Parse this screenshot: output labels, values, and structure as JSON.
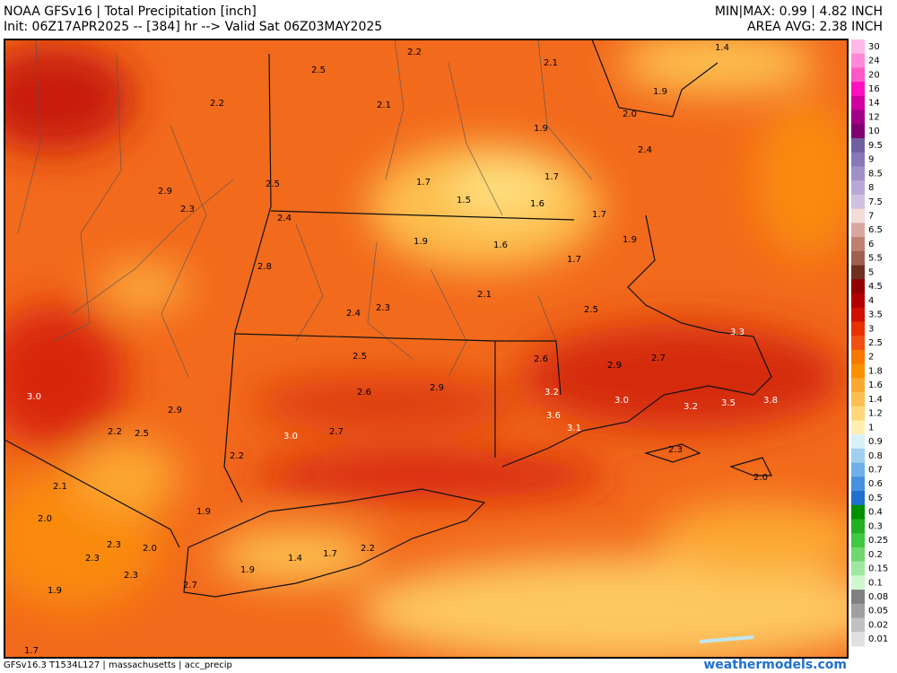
{
  "header": {
    "title": "NOAA GFSv16 | Total Precipitation [inch]",
    "subtitle": "Init: 06Z17APR2025 -- [384] hr --> Valid Sat 06Z03MAY2025",
    "minmax": "MIN|MAX: 0.99 | 4.82 INCH",
    "area_avg": "AREA AVG: 2.38 INCH"
  },
  "map": {
    "labels": [
      {
        "text": "2.5",
        "color": "#000000"
      },
      {
        "text": "2.2",
        "color": "#000000"
      },
      {
        "text": "2.1",
        "color": "#000000"
      },
      {
        "text": "1.4",
        "color": "#000000"
      },
      {
        "text": "2.2",
        "color": "#000000"
      },
      {
        "text": "2.1",
        "color": "#000000"
      },
      {
        "text": "1.9",
        "color": "#000000"
      },
      {
        "text": "2.0",
        "color": "#000000"
      },
      {
        "text": "1.9",
        "color": "#000000"
      },
      {
        "text": "2.4",
        "color": "#000000"
      },
      {
        "text": "2.9",
        "color": "#000000"
      },
      {
        "text": "2.3",
        "color": "#000000"
      },
      {
        "text": "2.5",
        "color": "#000000"
      },
      {
        "text": "1.7",
        "color": "#000000"
      },
      {
        "text": "1.7",
        "color": "#000000"
      },
      {
        "text": "1.5",
        "color": "#000000"
      },
      {
        "text": "1.6",
        "color": "#000000"
      },
      {
        "text": "1.7",
        "color": "#000000"
      },
      {
        "text": "2.4",
        "color": "#000000"
      },
      {
        "text": "1.9",
        "color": "#000000"
      },
      {
        "text": "1.6",
        "color": "#000000"
      },
      {
        "text": "1.9",
        "color": "#000000"
      },
      {
        "text": "1.7",
        "color": "#000000"
      },
      {
        "text": "2.8",
        "color": "#000000"
      },
      {
        "text": "2.1",
        "color": "#000000"
      },
      {
        "text": "2.5",
        "color": "#000000"
      },
      {
        "text": "2.4",
        "color": "#000000"
      },
      {
        "text": "2.3",
        "color": "#000000"
      },
      {
        "text": "3.3",
        "color": "#ffffff"
      },
      {
        "text": "2.5",
        "color": "#000000"
      },
      {
        "text": "2.6",
        "color": "#000000"
      },
      {
        "text": "2.9",
        "color": "#000000"
      },
      {
        "text": "2.7",
        "color": "#000000"
      },
      {
        "text": "2.6",
        "color": "#000000"
      },
      {
        "text": "2.9",
        "color": "#000000"
      },
      {
        "text": "3.2",
        "color": "#ffffff"
      },
      {
        "text": "3.0",
        "color": "#ffffff"
      },
      {
        "text": "3.0",
        "color": "#ffffff"
      },
      {
        "text": "3.6",
        "color": "#ffffff"
      },
      {
        "text": "3.2",
        "color": "#ffffff"
      },
      {
        "text": "3.5",
        "color": "#ffffff"
      },
      {
        "text": "3.8",
        "color": "#ffffff"
      },
      {
        "text": "2.9",
        "color": "#000000"
      },
      {
        "text": "3.1",
        "color": "#ffffff"
      },
      {
        "text": "2.2",
        "color": "#000000"
      },
      {
        "text": "2.5",
        "color": "#000000"
      },
      {
        "text": "3.0",
        "color": "#ffffff"
      },
      {
        "text": "2.7",
        "color": "#000000"
      },
      {
        "text": "2.3",
        "color": "#000000"
      },
      {
        "text": "2.2",
        "color": "#000000"
      },
      {
        "text": "2.1",
        "color": "#000000"
      },
      {
        "text": "2.0",
        "color": "#000000"
      },
      {
        "text": "1.9",
        "color": "#000000"
      },
      {
        "text": "2.0",
        "color": "#000000"
      },
      {
        "text": "2.3",
        "color": "#000000"
      },
      {
        "text": "2.0",
        "color": "#000000"
      },
      {
        "text": "2.3",
        "color": "#000000"
      },
      {
        "text": "1.7",
        "color": "#000000"
      },
      {
        "text": "2.2",
        "color": "#000000"
      },
      {
        "text": "1.4",
        "color": "#000000"
      },
      {
        "text": "2.3",
        "color": "#000000"
      },
      {
        "text": "1.9",
        "color": "#000000"
      },
      {
        "text": "2.7",
        "color": "#000000"
      },
      {
        "text": "1.9",
        "color": "#000000"
      },
      {
        "text": "1.7",
        "color": "#000000"
      }
    ]
  },
  "colorbar": {
    "labels": [
      "30",
      "24",
      "20",
      "16",
      "14",
      "12",
      "10",
      "9.5",
      "9",
      "8.5",
      "8",
      "7.5",
      "7",
      "6.5",
      "6",
      "5.5",
      "5",
      "4.5",
      "4",
      "3.5",
      "3",
      "2.5",
      "2",
      "1.8",
      "1.6",
      "1.4",
      "1.2",
      "1",
      "0.9",
      "0.8",
      "0.7",
      "0.6",
      "0.5",
      "0.4",
      "0.3",
      "0.25",
      "0.2",
      "0.15",
      "0.1",
      "0.08",
      "0.05",
      "0.02",
      "0.01"
    ],
    "colors": [
      "#ffb8e8",
      "#ff88d8",
      "#ff58c8",
      "#ff10c0",
      "#d000a0",
      "#a00088",
      "#800070",
      "#7060a0",
      "#8878b8",
      "#a090c8",
      "#b8a8d8",
      "#d0c0e0",
      "#f2dcd8",
      "#d8a8a0",
      "#c08070",
      "#a06050",
      "#703020",
      "#900000",
      "#b00000",
      "#d01000",
      "#e83000",
      "#f05010",
      "#f87800",
      "#fa9000",
      "#fca830",
      "#fdc050",
      "#fed878",
      "#fff0b0",
      "#d8f0f8",
      "#a0d0f0",
      "#70b0e8",
      "#4890e0",
      "#2070d0",
      "#009000",
      "#20b020",
      "#40c840",
      "#70d870",
      "#a0e8a0",
      "#d0f8d0",
      "#808080",
      "#a0a0a0",
      "#c0c0c0",
      "#e0e0e0"
    ]
  },
  "footer": {
    "info": "GFSv16.3 T1534L127 | massachusetts | acc_precip",
    "site": "weathermodels.com"
  }
}
